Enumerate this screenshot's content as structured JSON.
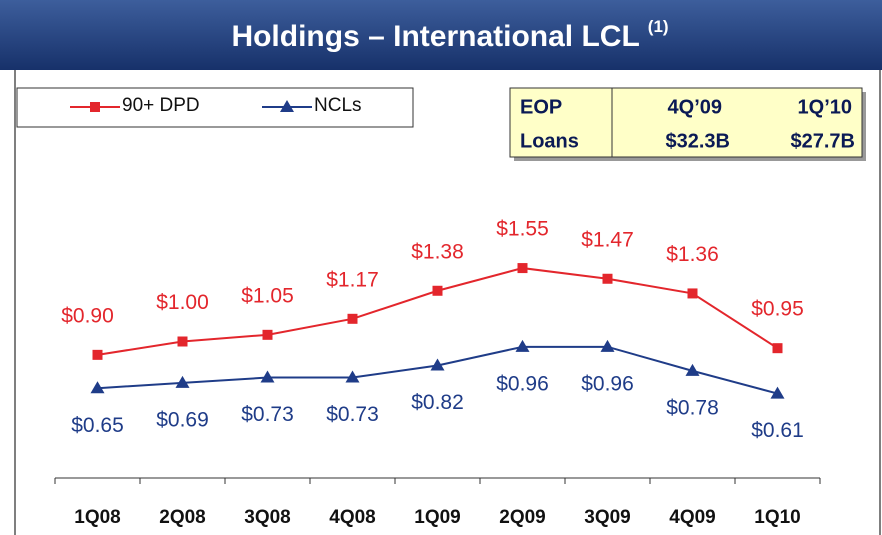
{
  "chart_data": {
    "type": "line",
    "title": "Holdings – International LCL",
    "title_note": "(1)",
    "categories": [
      "1Q08",
      "2Q08",
      "3Q08",
      "4Q08",
      "1Q09",
      "2Q09",
      "3Q09",
      "4Q09",
      "1Q10"
    ],
    "series": [
      {
        "name": "90+ DPD",
        "color": "#e3262c",
        "marker": "square",
        "values": [
          0.9,
          1.0,
          1.05,
          1.17,
          1.38,
          1.55,
          1.47,
          1.36,
          0.95
        ],
        "value_labels": [
          "$0.90",
          "$1.00",
          "$1.05",
          "$1.17",
          "$1.38",
          "$1.55",
          "$1.47",
          "$1.36",
          "$0.95"
        ]
      },
      {
        "name": "NCLs",
        "color": "#1f3c88",
        "marker": "triangle",
        "values": [
          0.65,
          0.69,
          0.73,
          0.73,
          0.82,
          0.96,
          0.96,
          0.78,
          0.61
        ],
        "value_labels": [
          "$0.65",
          "$0.69",
          "$0.73",
          "$0.73",
          "$0.82",
          "$0.96",
          "$0.96",
          "$0.78",
          "$0.61"
        ]
      }
    ]
  },
  "table": {
    "rows": [
      [
        "EOP",
        "4Q’09",
        "1Q’10"
      ],
      [
        "Loans",
        "$32.3B",
        "$27.7B"
      ]
    ]
  }
}
